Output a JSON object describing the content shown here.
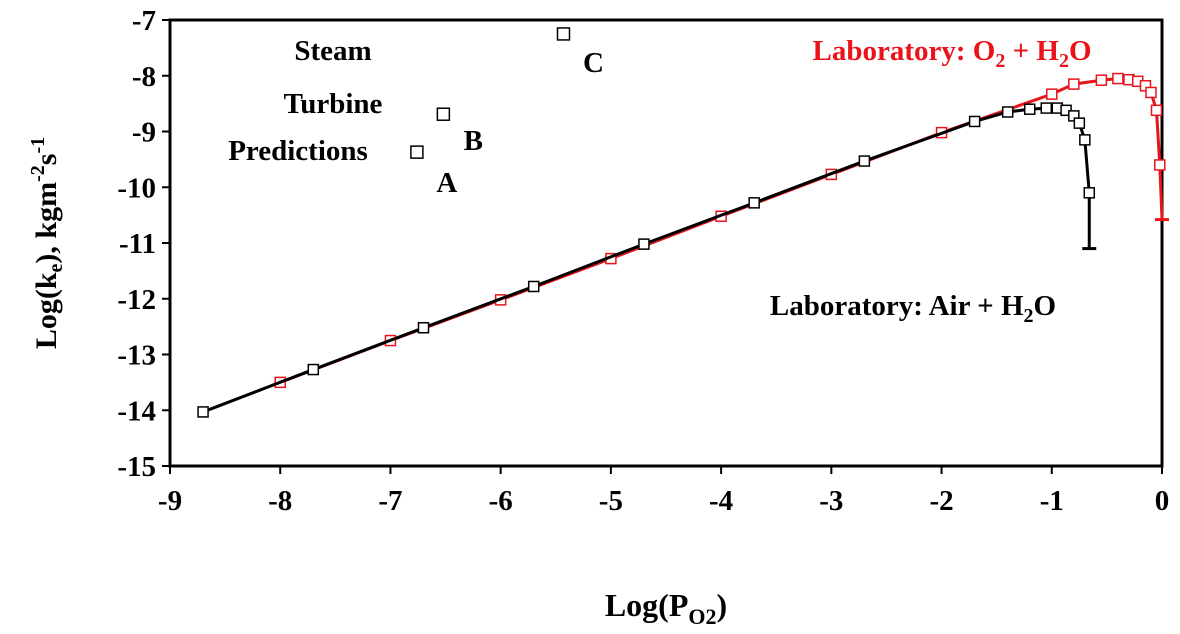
{
  "chart_data": {
    "type": "line",
    "xlim": [
      -9,
      0
    ],
    "xticks": [
      -9,
      -8,
      -7,
      -6,
      -5,
      -4,
      -3,
      -2,
      -1,
      0
    ],
    "ylim": [
      -15,
      -7
    ],
    "yticks": [
      -15,
      -14,
      -13,
      -12,
      -11,
      -10,
      -9,
      -8,
      -7
    ],
    "x_label": [
      "Log(P",
      "O2",
      ")"
    ],
    "y_label": [
      "Log(k",
      "e",
      "), kgm",
      "-2",
      "s",
      "-1"
    ],
    "annotations": {
      "o2": [
        "Laboratory: O",
        "2",
        " + H",
        "2",
        "O"
      ],
      "air": [
        "Laboratory: Air + H",
        "2",
        "O"
      ],
      "steam": [
        "Steam",
        "Turbine",
        "Predictions"
      ]
    },
    "series": [
      {
        "color": "#e8141a",
        "x": [
          -8,
          -7,
          -6,
          -5,
          -4,
          -3,
          -2,
          -1,
          -0.8,
          -0.55,
          -0.4,
          -0.3,
          -0.22,
          -0.15,
          -0.1,
          -0.05,
          -0.02,
          0
        ],
        "values": [
          -13.5,
          -12.75,
          -12.02,
          -11.28,
          -10.52,
          -9.77,
          -9.02,
          -8.33,
          -8.15,
          -8.08,
          -8.05,
          -8.07,
          -8.1,
          -8.18,
          -8.3,
          -8.62,
          -9.6,
          -10.58
        ]
      },
      {
        "color": "#000000",
        "x": [
          -8.7,
          -7.7,
          -6.7,
          -5.7,
          -4.7,
          -3.7,
          -2.7,
          -1.7,
          -1.4,
          -1.2,
          -1.05,
          -0.95,
          -0.87,
          -0.8,
          -0.75,
          -0.7,
          -0.66,
          -0.66
        ],
        "values": [
          -14.03,
          -13.27,
          -12.52,
          -11.78,
          -11.02,
          -10.28,
          -9.53,
          -8.82,
          -8.65,
          -8.6,
          -8.58,
          -8.58,
          -8.62,
          -8.72,
          -8.85,
          -9.15,
          -10.1,
          -11.1
        ]
      }
    ],
    "points": {
      "color": "#000000",
      "labels": [
        "A",
        "B",
        "C"
      ],
      "x": [
        -6.76,
        -6.52,
        -5.43
      ],
      "values": [
        -9.37,
        -8.69,
        -7.25
      ]
    }
  }
}
